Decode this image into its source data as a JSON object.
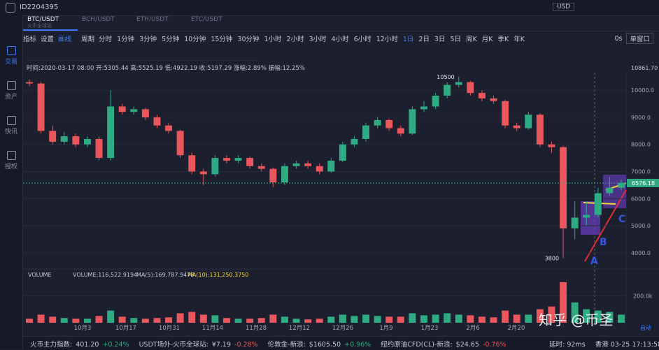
{
  "header": {
    "account": "ID2204395",
    "currency": "USD"
  },
  "tabs": [
    {
      "pair": "BTC/USDT",
      "exchange": "火币全球站"
    },
    {
      "pair": "BCH/USDT"
    },
    {
      "pair": "ETH/USDT"
    },
    {
      "pair": "ETC/USDT"
    }
  ],
  "sidebar": [
    "交易",
    "资产",
    "快讯",
    "授权"
  ],
  "toolbar": {
    "indicator": "指标",
    "settings": "设置",
    "draw": "画线",
    "period": "周期",
    "periods": [
      "分时",
      "1分钟",
      "3分钟",
      "5分钟",
      "10分钟",
      "15分钟",
      "30分钟",
      "1小时",
      "2小时",
      "3小时",
      "4小时",
      "6小时",
      "12小时",
      "1日",
      "2日",
      "3日",
      "5日",
      "周K",
      "月K",
      "季K",
      "年K"
    ],
    "active_period": "1日",
    "refresh": "0s",
    "window": "单窗口"
  },
  "info": "时间:2020-03-17 08:00 开:5305.44 高:5525.19 低:4922.19 收:5197.29 涨幅:2.89% 振幅:12.25%",
  "chart": {
    "type": "candlestick",
    "up_color": "#2eab83",
    "down_color": "#e9575c",
    "ylim": [
      3480,
      10650
    ],
    "yticks": [
      {
        "value": 4000,
        "label": "4000.0"
      },
      {
        "value": 5000,
        "label": "5000.0"
      },
      {
        "value": 6000,
        "label": "6000.0"
      },
      {
        "value": 7000,
        "label": "7000.0"
      },
      {
        "value": 8000,
        "label": "8000.0"
      },
      {
        "value": 9000,
        "label": "9000.0"
      },
      {
        "value": 10000,
        "label": "10000.0"
      }
    ],
    "top_price": "10861.70",
    "last_price": {
      "value": 6576.18,
      "label": "6576.18"
    },
    "annotations": [
      {
        "text": "10500",
        "value": 10500,
        "index": 37
      },
      {
        "text": "3800",
        "value": 3800,
        "index": 46
      }
    ],
    "points": [
      "A",
      "B",
      "C"
    ],
    "dates": [
      "10月3",
      "10月17",
      "10月31",
      "11月14",
      "11月28",
      "12月12",
      "12月26",
      "1月9",
      "1月23",
      "2月6",
      "2月20"
    ],
    "candles": [
      [
        10300,
        10400,
        10150,
        10250
      ],
      [
        10250,
        10300,
        8400,
        8500
      ],
      [
        8500,
        8700,
        8000,
        8100
      ],
      [
        8100,
        8450,
        8000,
        8300
      ],
      [
        8300,
        8400,
        7900,
        8000
      ],
      [
        8000,
        8300,
        7900,
        8200
      ],
      [
        8200,
        8300,
        7400,
        7500
      ],
      [
        7500,
        10000,
        7400,
        9400
      ],
      [
        9400,
        9500,
        9100,
        9200
      ],
      [
        9200,
        9400,
        9100,
        9300
      ],
      [
        9300,
        9350,
        8900,
        9000
      ],
      [
        9000,
        9100,
        8600,
        8700
      ],
      [
        8700,
        8800,
        8400,
        8500
      ],
      [
        8500,
        8550,
        7500,
        7600
      ],
      [
        7600,
        7700,
        6900,
        7000
      ],
      [
        7000,
        7100,
        6500,
        6900
      ],
      [
        6900,
        7600,
        6800,
        7500
      ],
      [
        7500,
        7600,
        7300,
        7400
      ],
      [
        7400,
        7600,
        7300,
        7500
      ],
      [
        7500,
        7550,
        7100,
        7200
      ],
      [
        7200,
        7300,
        7000,
        7100
      ],
      [
        7100,
        7150,
        6430,
        6600
      ],
      [
        6600,
        7300,
        6500,
        7200
      ],
      [
        7200,
        7400,
        7100,
        7300
      ],
      [
        7300,
        7400,
        7100,
        7200
      ],
      [
        7200,
        7300,
        6900,
        7000
      ],
      [
        7000,
        7500,
        6950,
        7400
      ],
      [
        7400,
        8100,
        7350,
        8000
      ],
      [
        8000,
        8300,
        7900,
        8200
      ],
      [
        8200,
        8800,
        8100,
        8700
      ],
      [
        8700,
        9000,
        8600,
        8900
      ],
      [
        8900,
        8950,
        8500,
        8600
      ],
      [
        8600,
        8700,
        8300,
        8400
      ],
      [
        8400,
        9400,
        8350,
        9300
      ],
      [
        9300,
        9600,
        9200,
        9400
      ],
      [
        9400,
        9900,
        9300,
        9800
      ],
      [
        9800,
        10300,
        9700,
        10200
      ],
      [
        10200,
        10500,
        10100,
        10300
      ],
      [
        10300,
        10350,
        9800,
        9900
      ],
      [
        9900,
        10000,
        9600,
        9700
      ],
      [
        9700,
        9800,
        9500,
        9600
      ],
      [
        9600,
        9650,
        8600,
        8700
      ],
      [
        8700,
        8800,
        8500,
        8600
      ],
      [
        8600,
        9200,
        8550,
        9100
      ],
      [
        9100,
        9150,
        7900,
        8000
      ],
      [
        8000,
        8100,
        7700,
        7900
      ],
      [
        7900,
        7950,
        3800,
        4900
      ],
      [
        4900,
        5900,
        4500,
        5300
      ],
      [
        5300,
        5900,
        5000,
        5400
      ],
      [
        5400,
        6400,
        5300,
        6200
      ],
      [
        6200,
        6800,
        6100,
        6400
      ],
      [
        6400,
        6700,
        6300,
        6576.18
      ]
    ],
    "volume": {
      "title": "VOLUME",
      "current": "VOLUME:116,522.9194",
      "ma5": "MA(5):169,787.9478",
      "ma10": "MA(10):131,250.3750",
      "ylim": [
        0,
        320000
      ],
      "yticks": [
        {
          "value": 200000,
          "label": "200.0k"
        }
      ],
      "values": [
        30000,
        60000,
        45000,
        35000,
        30000,
        30000,
        50000,
        90000,
        45000,
        35000,
        30000,
        35000,
        40000,
        70000,
        80000,
        60000,
        55000,
        35000,
        30000,
        30000,
        35000,
        60000,
        45000,
        30000,
        25000,
        30000,
        45000,
        60000,
        50000,
        60000,
        50000,
        45000,
        45000,
        70000,
        55000,
        60000,
        70000,
        60000,
        55000,
        45000,
        40000,
        90000,
        60000,
        60000,
        100000,
        120000,
        300000,
        150000,
        100000,
        90000,
        80000,
        60000
      ]
    }
  },
  "ticker": [
    {
      "name": "火币主力指数:",
      "price": "401.20",
      "change": "+0.24%"
    },
    {
      "name": "USDT场外-火币全球站:",
      "price": "¥7.19",
      "change": "-0.28%"
    },
    {
      "name": "伦敦金-新浪:",
      "price": "$1605.50",
      "change": "+0.96%"
    },
    {
      "name": "纽约原油CFD(CL)-新浪:",
      "price": "$24.65",
      "change": "-0.76%"
    }
  ],
  "status": {
    "latency": "延时: 92ms",
    "time": "香港 03-25 17:13:58",
    "auto": "自动"
  },
  "watermark": "知乎 @币圣"
}
